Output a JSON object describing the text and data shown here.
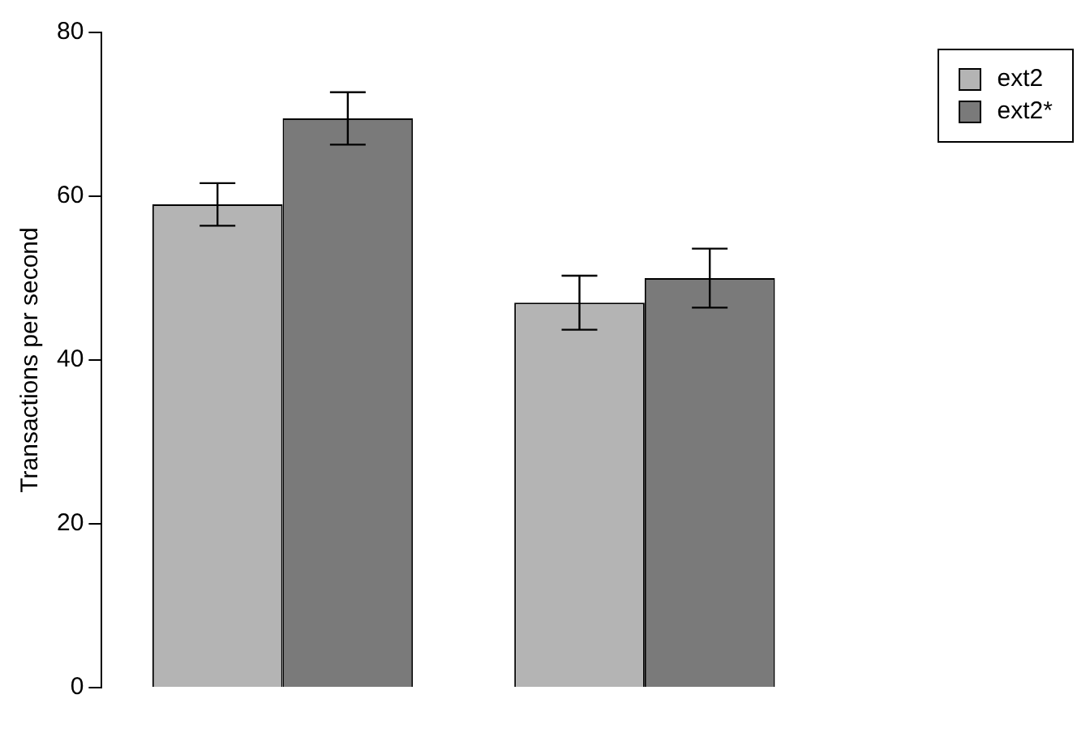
{
  "chart_data": {
    "type": "bar",
    "ylabel": "Transactions per second",
    "categories": [
      null,
      null
    ],
    "series": [
      {
        "name": "ext2",
        "color": "#b4b4b4",
        "values": [
          59,
          47
        ],
        "errors": [
          2.6,
          3.3
        ]
      },
      {
        "name": "ext2*",
        "color": "#7a7a7a",
        "values": [
          69.5,
          50
        ],
        "errors": [
          3.2,
          3.6
        ]
      }
    ],
    "ylim": [
      0,
      80
    ],
    "yticks": [
      0,
      20,
      40,
      60,
      80
    ],
    "grid": false,
    "legend": "top right"
  }
}
